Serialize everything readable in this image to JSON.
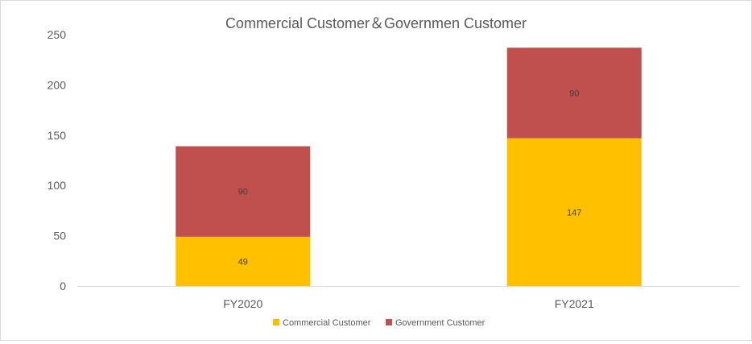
{
  "chart_data": {
    "type": "bar",
    "stacked": true,
    "title": "Commercial Customer＆Governmen  Customer",
    "categories": [
      "FY2020",
      "FY2021"
    ],
    "series": [
      {
        "name": "Commercial Customer",
        "values": [
          49,
          147
        ],
        "color": "#FFC000"
      },
      {
        "name": "Government  Customer",
        "values": [
          90,
          90
        ],
        "color": "#C0504D"
      }
    ],
    "y_ticks": [
      0,
      50,
      100,
      150,
      200,
      250
    ],
    "ylim": [
      0,
      250
    ],
    "grid": false,
    "legend_position": "bottom"
  }
}
